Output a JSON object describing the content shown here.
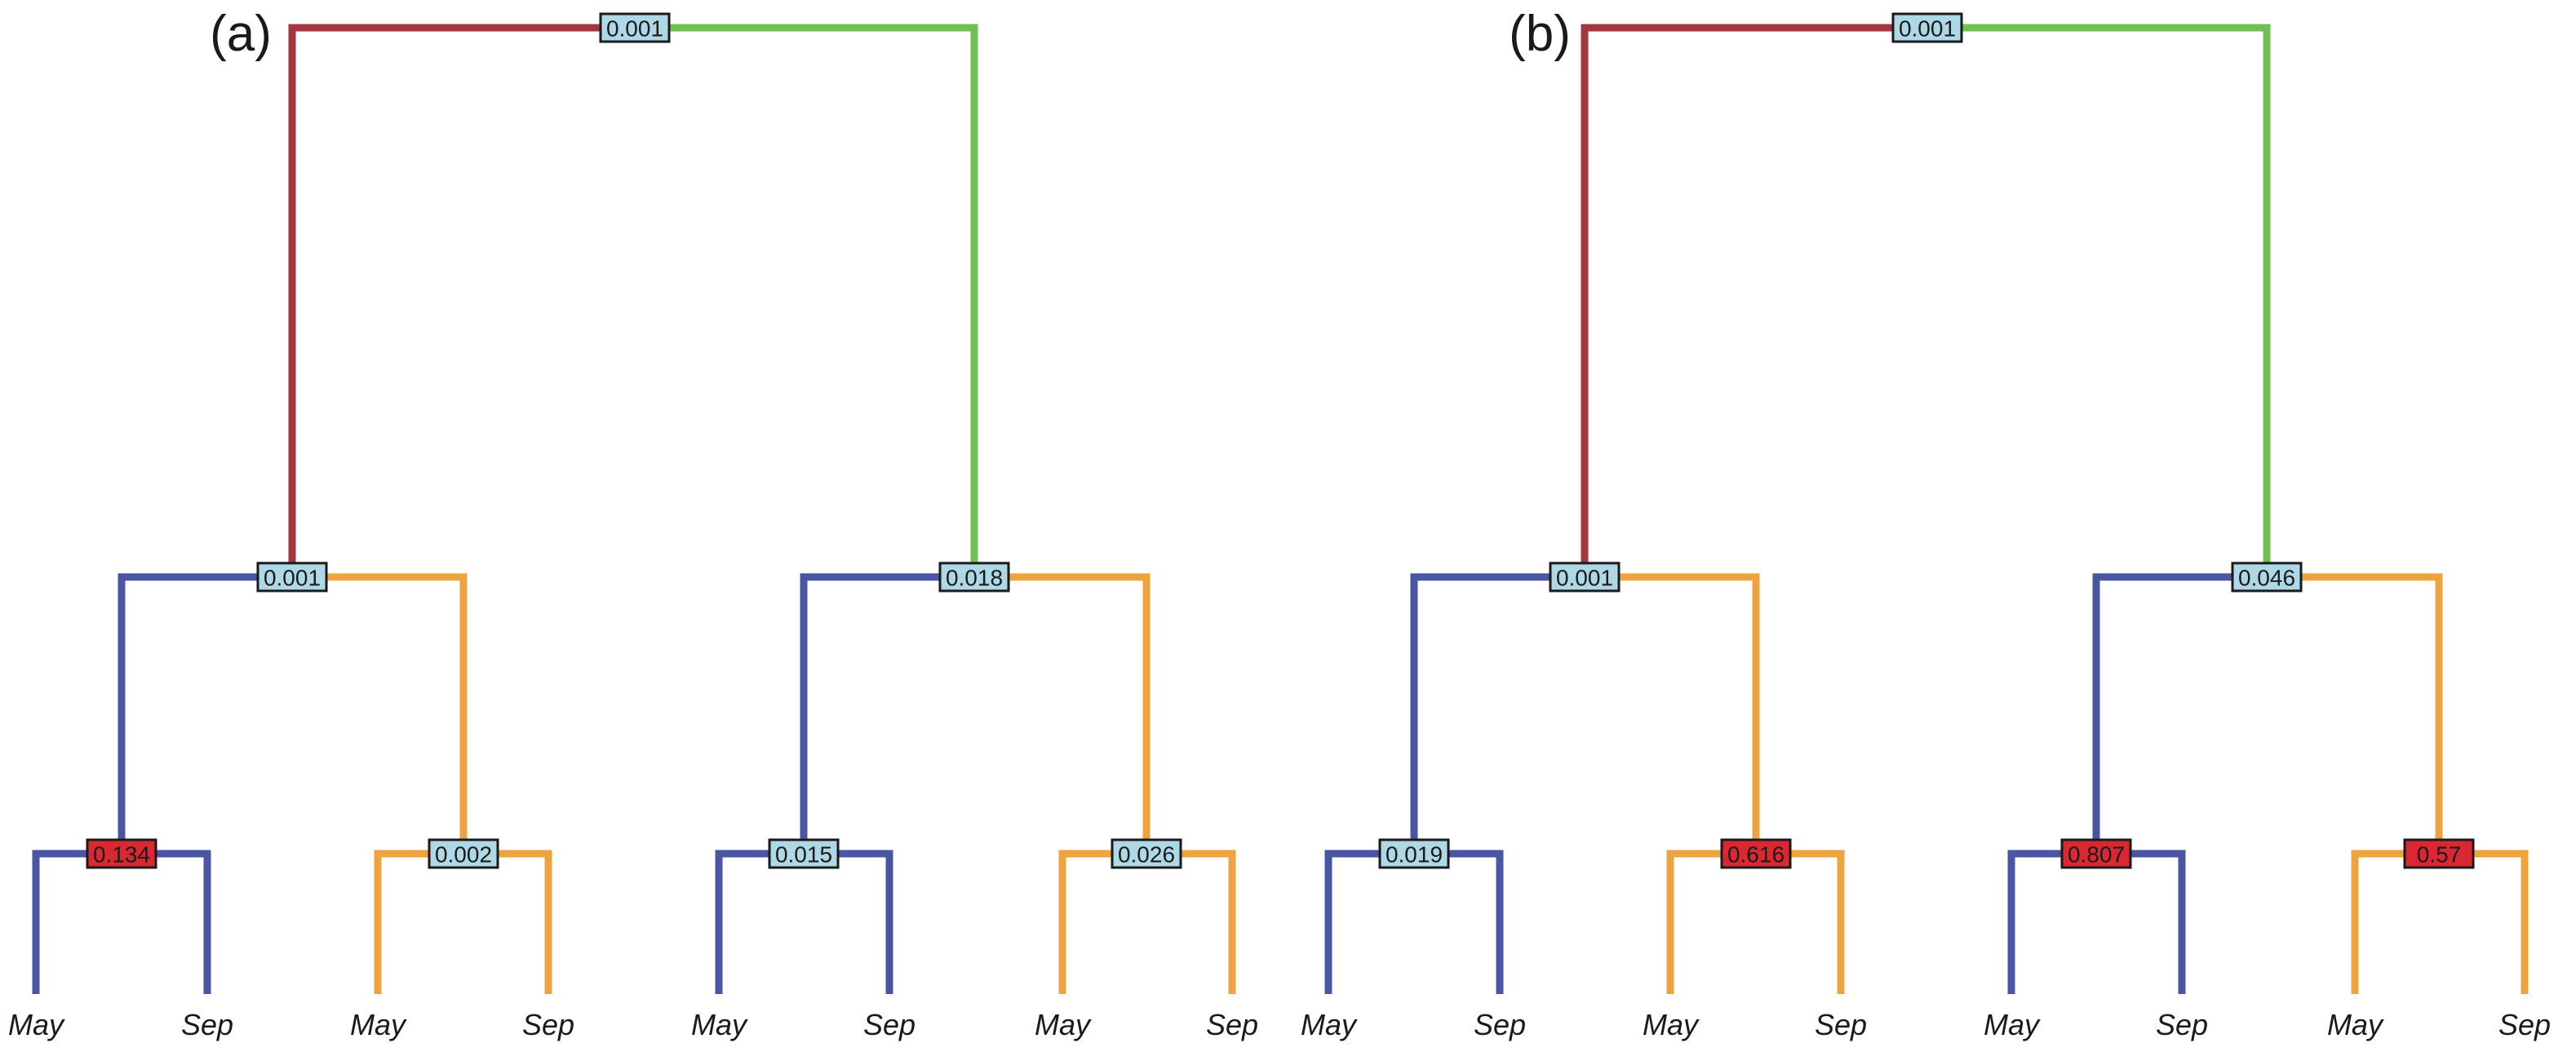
{
  "colors": {
    "root_left": "#A3363E",
    "root_right": "#72BF56",
    "mid_left": "#4B56A3",
    "mid_right": "#EDA43E",
    "box_low": "#AED8E6",
    "box_high": "#DA2833",
    "box_border": "#1a1a1a",
    "text": "#1a1a1a"
  },
  "panels": [
    {
      "label": "(a)",
      "root": "0.001",
      "mid": [
        "0.001",
        "0.018"
      ],
      "bottom": [
        "0.134",
        "0.002",
        "0.015",
        "0.026"
      ],
      "bottom_highlight": [
        true,
        false,
        false,
        false
      ],
      "leaves": [
        "May",
        "Sep",
        "May",
        "Sep",
        "May",
        "Sep",
        "May",
        "Sep"
      ]
    },
    {
      "label": "(b)",
      "root": "0.001",
      "mid": [
        "0.001",
        "0.046"
      ],
      "bottom": [
        "0.019",
        "0.616",
        "0.807",
        "0.57"
      ],
      "bottom_highlight": [
        false,
        true,
        true,
        true
      ],
      "leaves": [
        "May",
        "Sep",
        "May",
        "Sep",
        "May",
        "Sep",
        "May",
        "Sep"
      ]
    }
  ]
}
